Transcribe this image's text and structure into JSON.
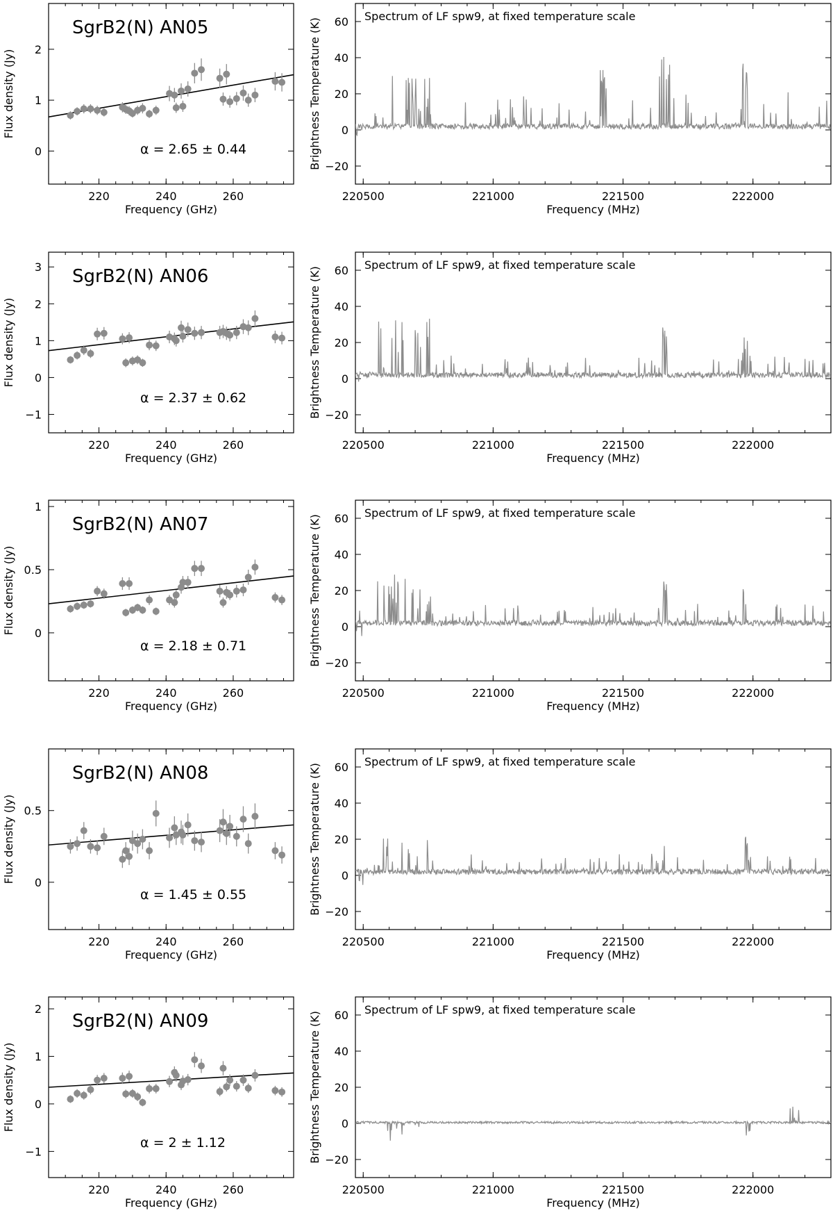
{
  "chart_data": [
    {
      "type": "scatter",
      "title": "SgrB2(N) AN05",
      "xlabel": "Frequency (GHz)",
      "ylabel": "Flux density (Jy)",
      "xlim": [
        205,
        278
      ],
      "ylim": [
        -0.65,
        2.9
      ],
      "xticks": [
        220,
        240,
        260
      ],
      "yticks": [
        0,
        1,
        2
      ],
      "annotation": "α = 2.65 ± 0.44",
      "fit": {
        "x": [
          205,
          278
        ],
        "y": [
          0.67,
          1.5
        ]
      },
      "points": [
        {
          "x": 211.5,
          "y": 0.7,
          "e": 0.08
        },
        {
          "x": 213.5,
          "y": 0.78,
          "e": 0.08
        },
        {
          "x": 215.5,
          "y": 0.83,
          "e": 0.09
        },
        {
          "x": 217.5,
          "y": 0.83,
          "e": 0.09
        },
        {
          "x": 219.5,
          "y": 0.8,
          "e": 0.09
        },
        {
          "x": 221.5,
          "y": 0.76,
          "e": 0.08
        },
        {
          "x": 227.0,
          "y": 0.86,
          "e": 0.1
        },
        {
          "x": 228.0,
          "y": 0.82,
          "e": 0.09
        },
        {
          "x": 229.0,
          "y": 0.79,
          "e": 0.09
        },
        {
          "x": 230.0,
          "y": 0.74,
          "e": 0.08
        },
        {
          "x": 231.5,
          "y": 0.8,
          "e": 0.09
        },
        {
          "x": 233.0,
          "y": 0.84,
          "e": 0.1
        },
        {
          "x": 235.0,
          "y": 0.73,
          "e": 0.08
        },
        {
          "x": 237.0,
          "y": 0.8,
          "e": 0.09
        },
        {
          "x": 241.0,
          "y": 1.13,
          "e": 0.15
        },
        {
          "x": 242.5,
          "y": 1.1,
          "e": 0.14
        },
        {
          "x": 243.0,
          "y": 0.85,
          "e": 0.1
        },
        {
          "x": 244.5,
          "y": 1.18,
          "e": 0.15
        },
        {
          "x": 245.0,
          "y": 0.88,
          "e": 0.11
        },
        {
          "x": 246.5,
          "y": 1.22,
          "e": 0.15
        },
        {
          "x": 248.5,
          "y": 1.53,
          "e": 0.2
        },
        {
          "x": 250.5,
          "y": 1.6,
          "e": 0.22
        },
        {
          "x": 256.0,
          "y": 1.43,
          "e": 0.19
        },
        {
          "x": 257.0,
          "y": 1.02,
          "e": 0.13
        },
        {
          "x": 258.0,
          "y": 1.51,
          "e": 0.2
        },
        {
          "x": 259.0,
          "y": 0.97,
          "e": 0.12
        },
        {
          "x": 261.0,
          "y": 1.03,
          "e": 0.13
        },
        {
          "x": 263.0,
          "y": 1.14,
          "e": 0.15
        },
        {
          "x": 264.5,
          "y": 1.0,
          "e": 0.13
        },
        {
          "x": 266.5,
          "y": 1.1,
          "e": 0.14
        },
        {
          "x": 272.5,
          "y": 1.37,
          "e": 0.18
        },
        {
          "x": 274.5,
          "y": 1.35,
          "e": 0.18
        }
      ]
    },
    {
      "type": "line",
      "title": "Spectrum of LF spw9, at fixed temperature scale",
      "xlabel": "Frequency (MHz)",
      "ylabel": "Brightness Temperature (K)",
      "xlim": [
        220470,
        222300
      ],
      "ylim": [
        -30,
        70
      ],
      "xticks": [
        220500,
        221000,
        221500,
        222000
      ],
      "yticks": [
        -20,
        0,
        20,
        40,
        60
      ],
      "profile": "high",
      "seed": 5
    },
    {
      "type": "scatter",
      "title": "SgrB2(N) AN06",
      "xlabel": "Frequency (GHz)",
      "ylabel": "Flux density (Jy)",
      "xlim": [
        205,
        278
      ],
      "ylim": [
        -1.5,
        3.4
      ],
      "xticks": [
        220,
        240,
        260
      ],
      "yticks": [
        -1,
        0,
        1,
        2,
        3
      ],
      "annotation": "α = 2.37 ± 0.62",
      "fit": {
        "x": [
          205,
          278
        ],
        "y": [
          0.73,
          1.51
        ]
      },
      "points": [
        {
          "x": 211.5,
          "y": 0.48,
          "e": 0.1
        },
        {
          "x": 213.5,
          "y": 0.6,
          "e": 0.11
        },
        {
          "x": 215.5,
          "y": 0.74,
          "e": 0.13
        },
        {
          "x": 217.5,
          "y": 0.65,
          "e": 0.12
        },
        {
          "x": 219.5,
          "y": 1.18,
          "e": 0.17
        },
        {
          "x": 221.5,
          "y": 1.2,
          "e": 0.17
        },
        {
          "x": 227.0,
          "y": 1.05,
          "e": 0.15
        },
        {
          "x": 228.0,
          "y": 0.4,
          "e": 0.12
        },
        {
          "x": 229.0,
          "y": 1.08,
          "e": 0.15
        },
        {
          "x": 230.0,
          "y": 0.45,
          "e": 0.12
        },
        {
          "x": 231.5,
          "y": 0.48,
          "e": 0.12
        },
        {
          "x": 233.0,
          "y": 0.4,
          "e": 0.11
        },
        {
          "x": 235.0,
          "y": 0.88,
          "e": 0.14
        },
        {
          "x": 237.0,
          "y": 0.86,
          "e": 0.14
        },
        {
          "x": 241.0,
          "y": 1.1,
          "e": 0.17
        },
        {
          "x": 242.5,
          "y": 1.05,
          "e": 0.17
        },
        {
          "x": 243.0,
          "y": 1.0,
          "e": 0.16
        },
        {
          "x": 244.5,
          "y": 1.35,
          "e": 0.19
        },
        {
          "x": 245.0,
          "y": 1.12,
          "e": 0.17
        },
        {
          "x": 246.5,
          "y": 1.3,
          "e": 0.19
        },
        {
          "x": 248.5,
          "y": 1.2,
          "e": 0.18
        },
        {
          "x": 250.5,
          "y": 1.22,
          "e": 0.18
        },
        {
          "x": 256.0,
          "y": 1.22,
          "e": 0.18
        },
        {
          "x": 257.0,
          "y": 1.25,
          "e": 0.18
        },
        {
          "x": 258.0,
          "y": 1.2,
          "e": 0.18
        },
        {
          "x": 259.0,
          "y": 1.15,
          "e": 0.17
        },
        {
          "x": 261.0,
          "y": 1.22,
          "e": 0.18
        },
        {
          "x": 263.0,
          "y": 1.38,
          "e": 0.2
        },
        {
          "x": 264.5,
          "y": 1.35,
          "e": 0.2
        },
        {
          "x": 266.5,
          "y": 1.6,
          "e": 0.22
        },
        {
          "x": 272.5,
          "y": 1.1,
          "e": 0.17
        },
        {
          "x": 274.5,
          "y": 1.07,
          "e": 0.17
        }
      ]
    },
    {
      "type": "line",
      "title": "Spectrum of LF spw9, at fixed temperature scale",
      "xlabel": "Frequency (MHz)",
      "ylabel": "Brightness Temperature (K)",
      "xlim": [
        220470,
        222300
      ],
      "ylim": [
        -30,
        70
      ],
      "xticks": [
        220500,
        221000,
        221500,
        222000
      ],
      "yticks": [
        -20,
        0,
        20,
        40,
        60
      ],
      "profile": "mid",
      "seed": 11
    },
    {
      "type": "scatter",
      "title": "SgrB2(N) AN07",
      "xlabel": "Frequency (GHz)",
      "ylabel": "Flux density (Jy)",
      "xlim": [
        205,
        278
      ],
      "ylim": [
        -0.38,
        1.05
      ],
      "xticks": [
        220,
        240,
        260
      ],
      "yticks": [
        0,
        0.5,
        1
      ],
      "annotation": "α = 2.18 ± 0.71",
      "fit": {
        "x": [
          205,
          278
        ],
        "y": [
          0.23,
          0.45
        ]
      },
      "points": [
        {
          "x": 211.5,
          "y": 0.19,
          "e": 0.03
        },
        {
          "x": 213.5,
          "y": 0.21,
          "e": 0.03
        },
        {
          "x": 215.5,
          "y": 0.22,
          "e": 0.03
        },
        {
          "x": 217.5,
          "y": 0.23,
          "e": 0.03
        },
        {
          "x": 219.5,
          "y": 0.33,
          "e": 0.04
        },
        {
          "x": 221.5,
          "y": 0.31,
          "e": 0.04
        },
        {
          "x": 227.0,
          "y": 0.39,
          "e": 0.05
        },
        {
          "x": 228.0,
          "y": 0.16,
          "e": 0.03
        },
        {
          "x": 229.0,
          "y": 0.39,
          "e": 0.05
        },
        {
          "x": 230.0,
          "y": 0.18,
          "e": 0.03
        },
        {
          "x": 231.5,
          "y": 0.2,
          "e": 0.03
        },
        {
          "x": 233.0,
          "y": 0.18,
          "e": 0.03
        },
        {
          "x": 235.0,
          "y": 0.26,
          "e": 0.04
        },
        {
          "x": 237.0,
          "y": 0.17,
          "e": 0.03
        },
        {
          "x": 241.0,
          "y": 0.26,
          "e": 0.04
        },
        {
          "x": 242.5,
          "y": 0.24,
          "e": 0.04
        },
        {
          "x": 243.0,
          "y": 0.3,
          "e": 0.04
        },
        {
          "x": 244.5,
          "y": 0.36,
          "e": 0.05
        },
        {
          "x": 245.0,
          "y": 0.4,
          "e": 0.05
        },
        {
          "x": 246.5,
          "y": 0.4,
          "e": 0.05
        },
        {
          "x": 248.5,
          "y": 0.51,
          "e": 0.06
        },
        {
          "x": 250.5,
          "y": 0.51,
          "e": 0.06
        },
        {
          "x": 256.0,
          "y": 0.33,
          "e": 0.05
        },
        {
          "x": 257.0,
          "y": 0.24,
          "e": 0.04
        },
        {
          "x": 258.0,
          "y": 0.32,
          "e": 0.05
        },
        {
          "x": 259.0,
          "y": 0.3,
          "e": 0.04
        },
        {
          "x": 261.0,
          "y": 0.33,
          "e": 0.05
        },
        {
          "x": 263.0,
          "y": 0.34,
          "e": 0.05
        },
        {
          "x": 264.5,
          "y": 0.44,
          "e": 0.06
        },
        {
          "x": 266.5,
          "y": 0.52,
          "e": 0.06
        },
        {
          "x": 272.5,
          "y": 0.28,
          "e": 0.04
        },
        {
          "x": 274.5,
          "y": 0.26,
          "e": 0.04
        }
      ]
    },
    {
      "type": "line",
      "title": "Spectrum of LF spw9, at fixed temperature scale",
      "xlabel": "Frequency (MHz)",
      "ylabel": "Brightness Temperature (K)",
      "xlim": [
        220470,
        222300
      ],
      "ylim": [
        -30,
        70
      ],
      "xticks": [
        220500,
        221000,
        221500,
        222000
      ],
      "yticks": [
        -20,
        0,
        20,
        40,
        60
      ],
      "profile": "mid",
      "seed": 23
    },
    {
      "type": "scatter",
      "title": "SgrB2(N) AN08",
      "xlabel": "Frequency (GHz)",
      "ylabel": "Flux density (Jy)",
      "xlim": [
        205,
        278
      ],
      "ylim": [
        -0.33,
        0.93
      ],
      "xticks": [
        220,
        240,
        260
      ],
      "yticks": [
        0,
        0.5
      ],
      "annotation": "α = 1.45 ± 0.55",
      "fit": {
        "x": [
          205,
          278
        ],
        "y": [
          0.26,
          0.4
        ]
      },
      "points": [
        {
          "x": 211.5,
          "y": 0.25,
          "e": 0.05
        },
        {
          "x": 213.5,
          "y": 0.27,
          "e": 0.05
        },
        {
          "x": 215.5,
          "y": 0.36,
          "e": 0.06
        },
        {
          "x": 217.5,
          "y": 0.25,
          "e": 0.05
        },
        {
          "x": 219.5,
          "y": 0.24,
          "e": 0.05
        },
        {
          "x": 221.5,
          "y": 0.32,
          "e": 0.06
        },
        {
          "x": 227.0,
          "y": 0.16,
          "e": 0.06
        },
        {
          "x": 228.0,
          "y": 0.22,
          "e": 0.06
        },
        {
          "x": 229.0,
          "y": 0.18,
          "e": 0.06
        },
        {
          "x": 230.0,
          "y": 0.29,
          "e": 0.07
        },
        {
          "x": 231.5,
          "y": 0.27,
          "e": 0.07
        },
        {
          "x": 233.0,
          "y": 0.3,
          "e": 0.07
        },
        {
          "x": 235.0,
          "y": 0.22,
          "e": 0.06
        },
        {
          "x": 237.0,
          "y": 0.48,
          "e": 0.09
        },
        {
          "x": 241.0,
          "y": 0.31,
          "e": 0.07
        },
        {
          "x": 242.5,
          "y": 0.38,
          "e": 0.08
        },
        {
          "x": 243.0,
          "y": 0.33,
          "e": 0.07
        },
        {
          "x": 244.5,
          "y": 0.35,
          "e": 0.08
        },
        {
          "x": 245.0,
          "y": 0.33,
          "e": 0.07
        },
        {
          "x": 246.5,
          "y": 0.4,
          "e": 0.08
        },
        {
          "x": 248.5,
          "y": 0.29,
          "e": 0.07
        },
        {
          "x": 250.5,
          "y": 0.28,
          "e": 0.07
        },
        {
          "x": 256.0,
          "y": 0.36,
          "e": 0.08
        },
        {
          "x": 257.0,
          "y": 0.42,
          "e": 0.09
        },
        {
          "x": 258.0,
          "y": 0.34,
          "e": 0.08
        },
        {
          "x": 259.0,
          "y": 0.39,
          "e": 0.08
        },
        {
          "x": 261.0,
          "y": 0.32,
          "e": 0.07
        },
        {
          "x": 263.0,
          "y": 0.44,
          "e": 0.09
        },
        {
          "x": 264.5,
          "y": 0.27,
          "e": 0.07
        },
        {
          "x": 266.5,
          "y": 0.46,
          "e": 0.09
        },
        {
          "x": 272.5,
          "y": 0.22,
          "e": 0.06
        },
        {
          "x": 274.5,
          "y": 0.19,
          "e": 0.06
        }
      ]
    },
    {
      "type": "line",
      "title": "Spectrum of LF spw9, at fixed temperature scale",
      "xlabel": "Frequency (MHz)",
      "ylabel": "Brightness Temperature (K)",
      "xlim": [
        220470,
        222300
      ],
      "ylim": [
        -30,
        70
      ],
      "xticks": [
        220500,
        221000,
        221500,
        222000
      ],
      "yticks": [
        -20,
        0,
        20,
        40,
        60
      ],
      "profile": "low",
      "seed": 37
    },
    {
      "type": "scatter",
      "title": "SgrB2(N) AN09",
      "xlabel": "Frequency (GHz)",
      "ylabel": "Flux density (Jy)",
      "xlim": [
        205,
        278
      ],
      "ylim": [
        -1.55,
        2.25
      ],
      "xticks": [
        220,
        240,
        260
      ],
      "yticks": [
        -1,
        0,
        1,
        2
      ],
      "annotation": "α = 2 ± 1.12",
      "fit": {
        "x": [
          205,
          278
        ],
        "y": [
          0.35,
          0.65
        ]
      },
      "points": [
        {
          "x": 211.5,
          "y": 0.1,
          "e": 0.08
        },
        {
          "x": 213.5,
          "y": 0.22,
          "e": 0.09
        },
        {
          "x": 215.5,
          "y": 0.18,
          "e": 0.09
        },
        {
          "x": 217.5,
          "y": 0.3,
          "e": 0.1
        },
        {
          "x": 219.5,
          "y": 0.5,
          "e": 0.11
        },
        {
          "x": 221.5,
          "y": 0.54,
          "e": 0.11
        },
        {
          "x": 227.0,
          "y": 0.54,
          "e": 0.12
        },
        {
          "x": 228.0,
          "y": 0.21,
          "e": 0.09
        },
        {
          "x": 229.0,
          "y": 0.58,
          "e": 0.12
        },
        {
          "x": 230.0,
          "y": 0.22,
          "e": 0.09
        },
        {
          "x": 231.5,
          "y": 0.15,
          "e": 0.09
        },
        {
          "x": 233.0,
          "y": 0.03,
          "e": 0.08
        },
        {
          "x": 235.0,
          "y": 0.32,
          "e": 0.1
        },
        {
          "x": 237.0,
          "y": 0.32,
          "e": 0.1
        },
        {
          "x": 241.0,
          "y": 0.47,
          "e": 0.12
        },
        {
          "x": 242.5,
          "y": 0.66,
          "e": 0.13
        },
        {
          "x": 243.0,
          "y": 0.6,
          "e": 0.13
        },
        {
          "x": 244.5,
          "y": 0.4,
          "e": 0.11
        },
        {
          "x": 245.0,
          "y": 0.48,
          "e": 0.12
        },
        {
          "x": 246.5,
          "y": 0.51,
          "e": 0.12
        },
        {
          "x": 248.5,
          "y": 0.93,
          "e": 0.16
        },
        {
          "x": 250.5,
          "y": 0.8,
          "e": 0.15
        },
        {
          "x": 256.0,
          "y": 0.26,
          "e": 0.1
        },
        {
          "x": 257.0,
          "y": 0.75,
          "e": 0.15
        },
        {
          "x": 258.0,
          "y": 0.36,
          "e": 0.1
        },
        {
          "x": 259.0,
          "y": 0.5,
          "e": 0.12
        },
        {
          "x": 261.0,
          "y": 0.37,
          "e": 0.11
        },
        {
          "x": 263.0,
          "y": 0.5,
          "e": 0.12
        },
        {
          "x": 264.5,
          "y": 0.33,
          "e": 0.1
        },
        {
          "x": 266.5,
          "y": 0.6,
          "e": 0.13
        },
        {
          "x": 272.5,
          "y": 0.28,
          "e": 0.1
        },
        {
          "x": 274.5,
          "y": 0.25,
          "e": 0.1
        }
      ]
    },
    {
      "type": "line",
      "title": "Spectrum of LF spw9, at fixed temperature scale",
      "xlabel": "Frequency (MHz)",
      "ylabel": "Brightness Temperature (K)",
      "xlim": [
        220470,
        222300
      ],
      "ylim": [
        -30,
        70
      ],
      "xticks": [
        220500,
        221000,
        221500,
        222000
      ],
      "yticks": [
        -20,
        0,
        20,
        40,
        60
      ],
      "profile": "absorb",
      "seed": 51
    }
  ]
}
